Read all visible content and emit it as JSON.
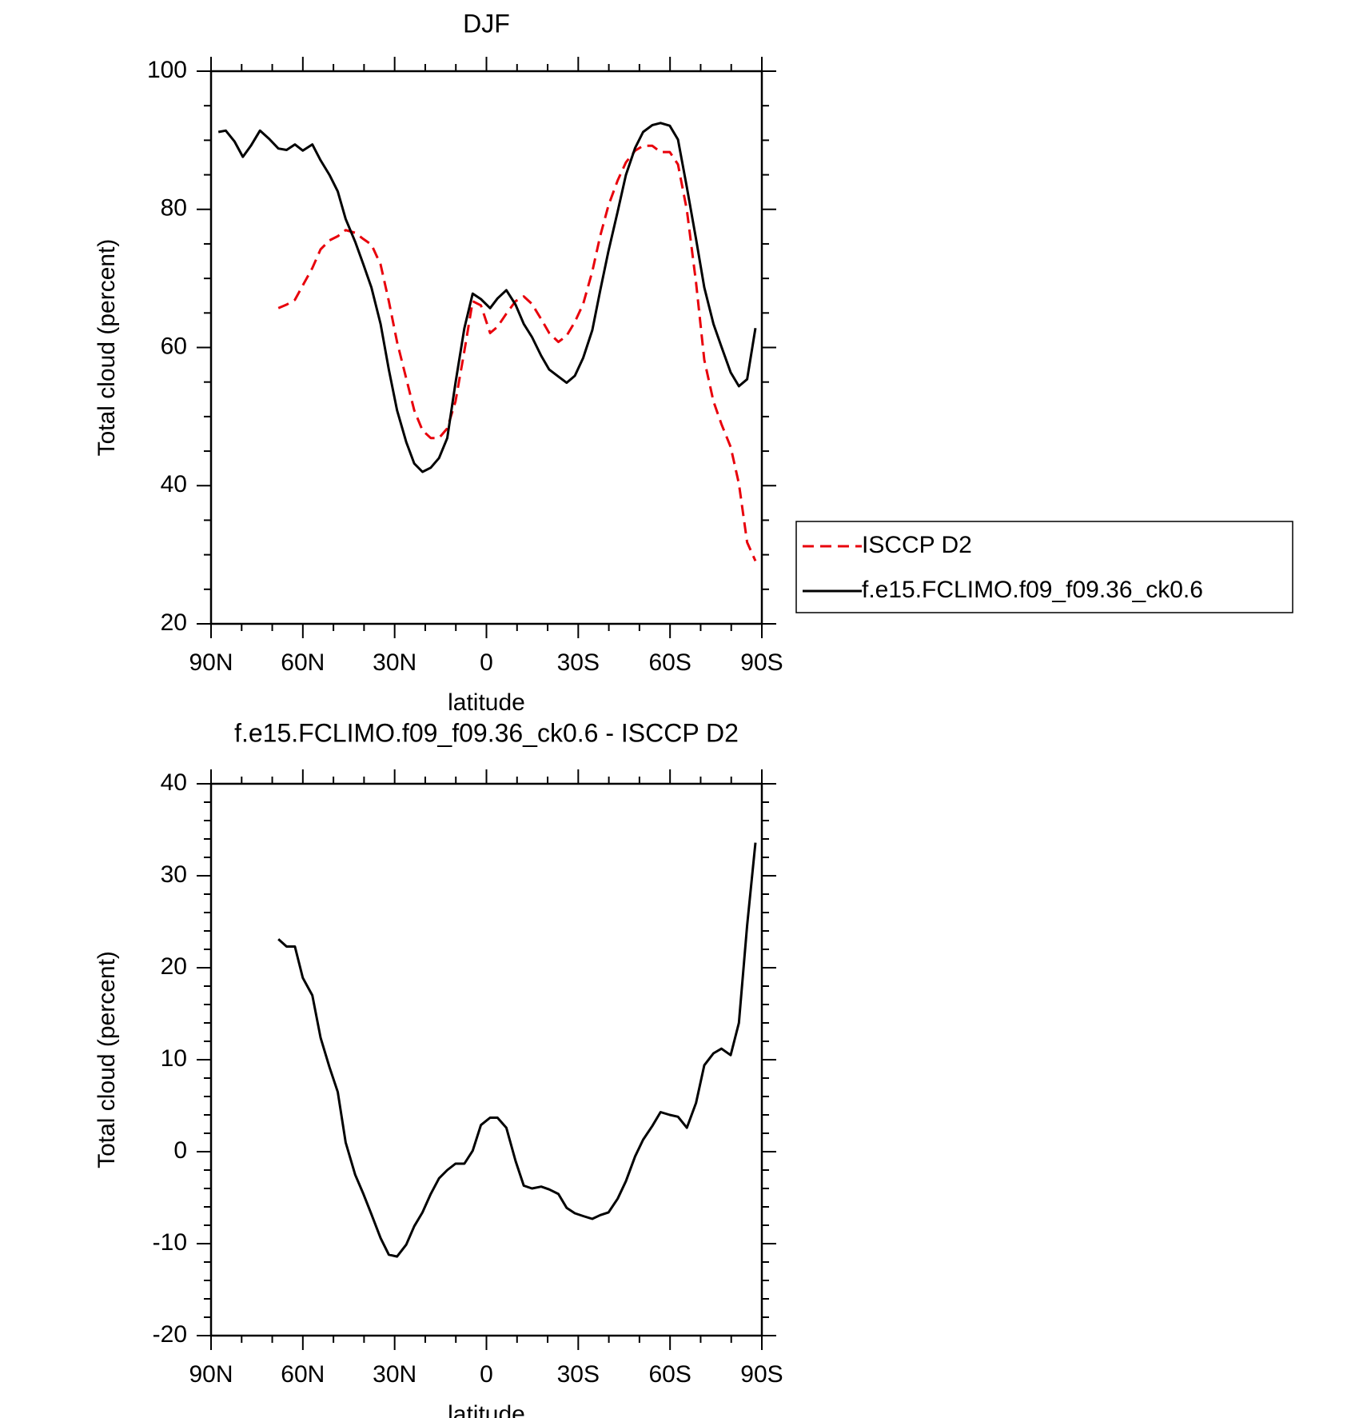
{
  "chart_data": [
    {
      "type": "line",
      "title": "DJF",
      "xlabel": "latitude",
      "ylabel": "Total cloud (percent)",
      "xlim": [
        90,
        -90
      ],
      "xticks": [
        {
          "value": 90,
          "label": "90N"
        },
        {
          "value": 60,
          "label": "60N"
        },
        {
          "value": 30,
          "label": "30N"
        },
        0,
        {
          "value": -30,
          "label": "30S"
        },
        {
          "value": -60,
          "label": "60S"
        },
        {
          "value": -90,
          "label": "90S"
        }
      ],
      "xminorticks": [
        80,
        70,
        50,
        40,
        20,
        10,
        -10,
        -20,
        -40,
        -50,
        -70,
        -80
      ],
      "ylim": [
        20,
        100
      ],
      "yticks": [
        20,
        40,
        60,
        80,
        100
      ],
      "yminorticks": [
        25,
        30,
        35,
        45,
        50,
        55,
        65,
        70,
        75,
        85,
        90,
        95
      ],
      "legend": "right",
      "x": [
        87.6,
        85.2,
        82.3,
        79.6,
        77,
        74,
        71,
        68,
        65.3,
        62.6,
        60,
        56.9,
        54.2,
        51.3,
        48.6,
        46,
        42.9,
        40.2,
        37.6,
        34.6,
        31.9,
        29.2,
        26.2,
        23.6,
        20.9,
        18.2,
        15.5,
        12.8,
        10.1,
        7.2,
        4.5,
        1.8,
        -1.2,
        -3.6,
        -6.5,
        -9.5,
        -12.2,
        -14.9,
        -17.9,
        -20.5,
        -23.5,
        -26.2,
        -28.9,
        -31.6,
        -34.6,
        -37.2,
        -39.9,
        -42.9,
        -45.6,
        -48.6,
        -51.2,
        -54.2,
        -56.9,
        -59.9,
        -62.6,
        -65.5,
        -68.5,
        -71.2,
        -74.2,
        -76.8,
        -79.8,
        -82.5,
        -85.2,
        -87.9
      ],
      "series": [
        {
          "name": "ISCCP D2",
          "color": "#e8000b",
          "dash": true,
          "values": [
            null,
            null,
            null,
            null,
            null,
            null,
            null,
            65.7,
            66.2,
            66.9,
            69,
            71.5,
            74.2,
            75.5,
            76.1,
            77,
            76.6,
            75.7,
            74.9,
            72,
            66.7,
            60.8,
            55.5,
            50.9,
            48,
            46.9,
            46.9,
            48.3,
            52.2,
            59.5,
            66.7,
            66.1,
            62.1,
            63,
            64.9,
            66.7,
            67.4,
            66.3,
            64.1,
            62.1,
            60.8,
            61.7,
            63.7,
            66.3,
            71,
            76.2,
            80.6,
            84.2,
            86.8,
            88.5,
            89.2,
            89.2,
            88.3,
            88.3,
            86.5,
            79.9,
            69.4,
            58.2,
            52.2,
            48.9,
            45.6,
            40.3,
            31.8,
            29.1
          ]
        },
        {
          "name": "f.e15.FCLIMO.f09_f09.36_ck0.6",
          "color": "#000000",
          "dash": false,
          "values": [
            91.2,
            91.4,
            89.8,
            87.6,
            89.2,
            91.4,
            90.2,
            88.8,
            88.6,
            89.4,
            88.5,
            89.4,
            87.1,
            85,
            82.6,
            78.6,
            75.3,
            72,
            68.7,
            63.4,
            56.8,
            50.9,
            46.3,
            43.2,
            42,
            42.6,
            44,
            46.9,
            54.9,
            62.8,
            67.8,
            67,
            65.7,
            67.1,
            68.3,
            66.2,
            63.4,
            61.5,
            58.8,
            56.8,
            55.8,
            54.9,
            55.9,
            58.5,
            62.5,
            68.3,
            74,
            79.7,
            85,
            88.9,
            91.2,
            92.2,
            92.5,
            92.1,
            90.1,
            83.2,
            75.7,
            68.7,
            63.4,
            60.1,
            56.4,
            54.4,
            55.4,
            62.8
          ]
        }
      ]
    },
    {
      "type": "line",
      "title": "f.e15.FCLIMO.f09_f09.36_ck0.6 - ISCCP D2",
      "xlabel": "latitude",
      "ylabel": "Total cloud (percent)",
      "xlim": [
        90,
        -90
      ],
      "xticks": [
        {
          "value": 90,
          "label": "90N"
        },
        {
          "value": 60,
          "label": "60N"
        },
        {
          "value": 30,
          "label": "30N"
        },
        0,
        {
          "value": -30,
          "label": "30S"
        },
        {
          "value": -60,
          "label": "60S"
        },
        {
          "value": -90,
          "label": "90S"
        }
      ],
      "xminorticks": [
        80,
        70,
        50,
        40,
        20,
        10,
        -10,
        -20,
        -40,
        -50,
        -70,
        -80
      ],
      "ylim": [
        -20,
        40
      ],
      "yticks": [
        -20,
        -10,
        0,
        10,
        20,
        30,
        40
      ],
      "yminorticks": [
        -18,
        -16,
        -14,
        -12,
        -8,
        -6,
        -4,
        -2,
        2,
        4,
        6,
        8,
        12,
        14,
        16,
        18,
        22,
        24,
        26,
        28,
        32,
        34,
        36,
        38
      ],
      "x": [
        68,
        65.3,
        62.6,
        60,
        56.9,
        54.2,
        51.3,
        48.6,
        46,
        42.9,
        40.2,
        37.6,
        34.6,
        31.9,
        29.2,
        26.2,
        23.6,
        20.9,
        18.2,
        15.5,
        12.8,
        10.1,
        7.2,
        4.5,
        1.8,
        -1.2,
        -3.6,
        -6.5,
        -9.5,
        -12.2,
        -14.9,
        -17.9,
        -20.5,
        -23.5,
        -26.2,
        -28.9,
        -31.6,
        -34.6,
        -37.2,
        -39.9,
        -42.9,
        -45.6,
        -48.6,
        -51.2,
        -54.2,
        -56.9,
        -59.9,
        -62.6,
        -65.5,
        -68.5,
        -71.2,
        -74.2,
        -76.8,
        -79.8,
        -82.5,
        -85.2,
        -87.9
      ],
      "color": "#000000",
      "values": [
        23.1,
        22.3,
        22.3,
        18.9,
        17,
        12.4,
        9.2,
        6.5,
        1,
        -2.5,
        -4.6,
        -6.8,
        -9.4,
        -11.2,
        -11.4,
        -10.1,
        -8.1,
        -6.6,
        -4.6,
        -2.9,
        -2,
        -1.3,
        -1.3,
        0.1,
        2.9,
        3.7,
        3.7,
        2.6,
        -1,
        -3.7,
        -4,
        -3.8,
        -4.1,
        -4.6,
        -6.1,
        -6.7,
        -7,
        -7.3,
        -6.9,
        -6.6,
        -5.1,
        -3.2,
        -0.5,
        1.3,
        2.8,
        4.3,
        4,
        3.8,
        2.6,
        5.3,
        9.4,
        10.7,
        11.2,
        10.5,
        14,
        24.6,
        33.6
      ]
    }
  ]
}
